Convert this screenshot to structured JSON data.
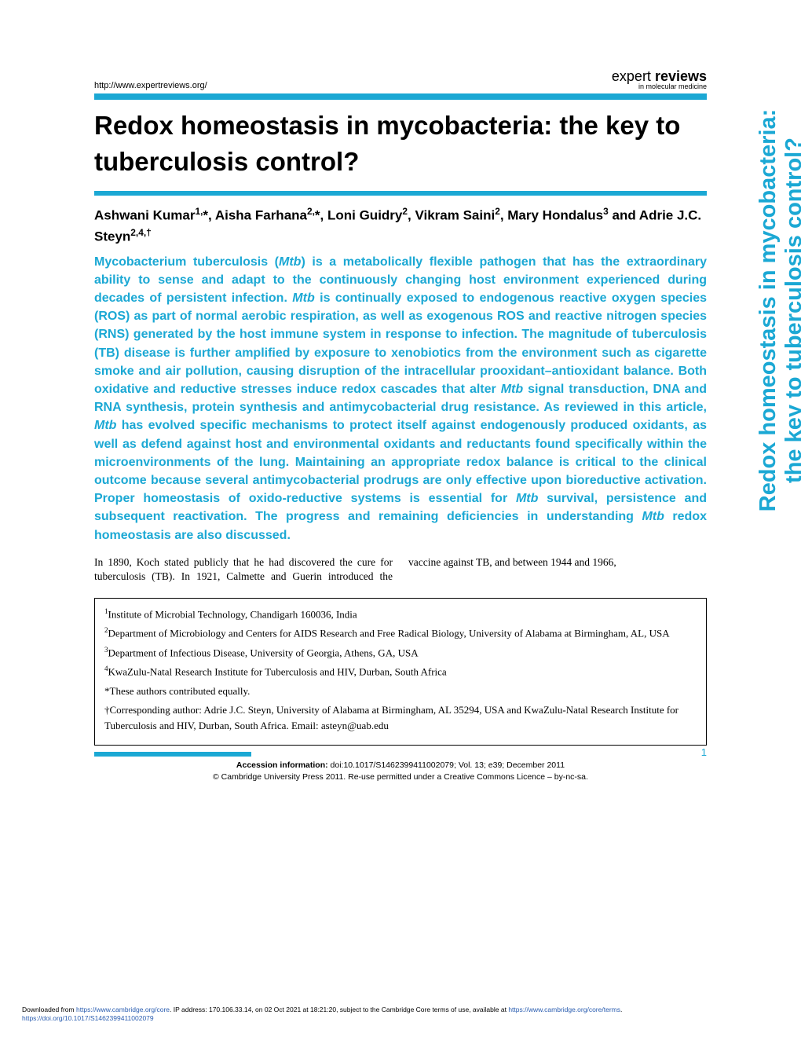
{
  "header": {
    "url": "http://www.expertreviews.org/",
    "journal_light": "expert ",
    "journal_bold": "reviews",
    "journal_sub": "in molecular medicine"
  },
  "title": "Redox homeostasis in mycobacteria: the key to tuberculosis control?",
  "side_title": "Redox homeostasis in mycobacteria: the key to tuberculosis control?",
  "authors_html": "Ashwani Kumar<sup>1,</sup>*, Aisha Farhana<sup>2,</sup>*, Loni Guidry<sup>2</sup>, Vikram Saini<sup>2</sup>, Mary Hondalus<sup>3</sup> and Adrie J.C. Steyn<sup>2,4,†</sup>",
  "abstract_html": "Mycobacterium tuberculosis (<span class=\"ital\">Mtb</span>) is a metabolically flexible pathogen that has the extraordinary ability to sense and adapt to the continuously changing host environment experienced during decades of persistent infection. <span class=\"ital\">Mtb</span> is continually exposed to endogenous reactive oxygen species (ROS) as part of normal aerobic respiration, as well as exogenous ROS and reactive nitrogen species (RNS) generated by the host immune system in response to infection. The magnitude of tuberculosis (TB) disease is further amplified by exposure to xenobiotics from the environment such as cigarette smoke and air pollution, causing disruption of the intracellular prooxidant–antioxidant balance. Both oxidative and reductive stresses induce redox cascades that alter <span class=\"ital\">Mtb</span> signal transduction, DNA and RNA synthesis, protein synthesis and antimycobacterial drug resistance. As reviewed in this article, <span class=\"ital\">Mtb</span> has evolved specific mechanisms to protect itself against endogenously produced oxidants, as well as defend against host and environmental oxidants and reductants found specifically within the microenvironments of the lung. Maintaining an appropriate redox balance is critical to the clinical outcome because several antimycobacterial prodrugs are only effective upon bioreductive activation. Proper homeostasis of oxido-reductive systems is essential for <span class=\"ital\">Mtb</span> survival, persistence and subsequent reactivation. The progress and remaining deficiencies in understanding <span class=\"ital\">Mtb</span> redox homeostasis are also discussed.",
  "body_text": "In 1890, Koch stated publicly that he had discovered the cure for tuberculosis (TB). In 1921, Calmette and Guerin introduced the vaccine against TB, and between 1944 and 1966,",
  "affiliations": [
    "<sup>1</sup>Institute of Microbial Technology, Chandigarh 160036, India",
    "<sup>2</sup>Department of Microbiology and Centers for AIDS Research and Free Radical Biology, University of Alabama at Birmingham, AL, USA",
    "<sup>3</sup>Department of Infectious Disease, University of Georgia, Athens, GA, USA",
    "<sup>4</sup>KwaZulu-Natal Research Institute for Tuberculosis and HIV, Durban, South Africa",
    "*These authors contributed equally.",
    "†Corresponding author: Adrie J.C. Steyn, University of Alabama at Birmingham, AL 35294, USA and KwaZulu-Natal Research Institute for Tuberculosis and HIV, Durban, South Africa. Email: asteyn@uab.edu"
  ],
  "page_number": "1",
  "accession": {
    "label": "Accession information:",
    "doi": " doi:10.1017/S1462399411002079; Vol. 13; e39; December 2011",
    "copyright": "© Cambridge University Press 2011. Re-use permitted under a Creative Commons Licence – by-nc-sa."
  },
  "footer": {
    "prefix": "Downloaded from ",
    "link1": "https://www.cambridge.org/core",
    "mid1": ". IP address: 170.106.33.14, on 02 Oct 2021 at 18:21:20, subject to the Cambridge Core terms of use, available at ",
    "link2": "https://www.cambridge.org/core/terms",
    "dot": ". ",
    "link3": "https://doi.org/10.1017/S1462399411002079"
  },
  "colors": {
    "accent": "#1ba8d4",
    "text": "#000000",
    "link": "#2a5db0",
    "background": "#ffffff"
  }
}
